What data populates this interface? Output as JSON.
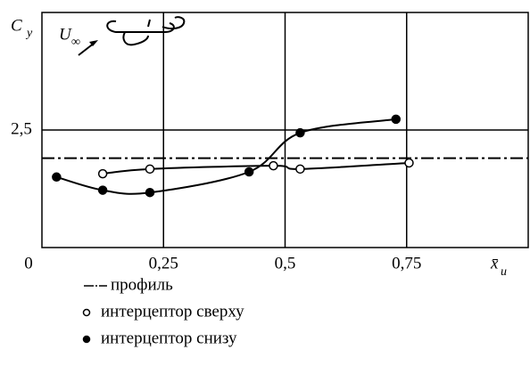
{
  "chart_data": {
    "type": "line",
    "y_label": {
      "main": "C",
      "sub": "y"
    },
    "x_label": {
      "main": "x̄",
      "sub": "u"
    },
    "annotation": {
      "main": "U",
      "sub": "∞"
    },
    "xlim": [
      0,
      1.0
    ],
    "ylim": [
      0,
      5
    ],
    "xticks": [
      {
        "value": 0,
        "label": "0"
      },
      {
        "value": 0.25,
        "label": "0,25"
      },
      {
        "value": 0.5,
        "label": "0,5"
      },
      {
        "value": 0.75,
        "label": "0,75"
      }
    ],
    "yticks": [
      {
        "value": 2.5,
        "label": "2,5"
      }
    ],
    "grid": true,
    "reference_lines": [
      {
        "name": "профиль",
        "value": 1.9,
        "color": "#000"
      }
    ],
    "series": [
      {
        "name": "интерцептор сверху",
        "color": "#000",
        "marker": "open",
        "x": [
          0.125,
          0.222,
          0.476,
          0.531,
          0.755
        ],
        "values": [
          1.57,
          1.67,
          1.74,
          1.67,
          1.8
        ]
      },
      {
        "name": "интерцептор снизу",
        "color": "#000",
        "marker": "filled",
        "x": [
          0.03,
          0.125,
          0.222,
          0.426,
          0.531,
          0.728
        ],
        "values": [
          1.5,
          1.22,
          1.17,
          1.61,
          2.44,
          2.73
        ]
      }
    ]
  }
}
